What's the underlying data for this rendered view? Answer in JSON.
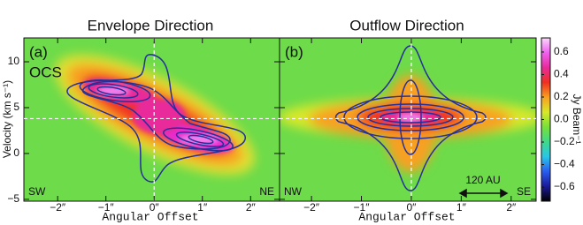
{
  "chart_data": [
    {
      "type": "heatmap",
      "title": "Envelope Direction",
      "panel_label": "(a)",
      "molecule": "OCS",
      "xlabel": "Angular Offset",
      "ylabel": "Velocity (km s⁻¹)",
      "left_label": "SW",
      "right_label": "NE",
      "xlim": [
        -2.7,
        2.6
      ],
      "ylim": [
        -5.2,
        12.6
      ],
      "xticks": [
        {
          "value": -2,
          "label": "−2″"
        },
        {
          "value": -1,
          "label": "−1″"
        },
        {
          "value": 0,
          "label": "0″"
        },
        {
          "value": 1,
          "label": "1″"
        },
        {
          "value": 2,
          "label": "2″"
        }
      ],
      "yticks": [
        {
          "value": -5,
          "label": "−5"
        },
        0,
        5,
        10
      ],
      "reference_lines": {
        "x": 0,
        "y": 3.8
      },
      "contour_color": "#25309a"
    },
    {
      "type": "heatmap",
      "title": "Outflow Direction",
      "panel_label": "(b)",
      "xlabel": "Angular Offset",
      "left_label": "NW",
      "right_label": "SE",
      "scale_bar": "120 AU",
      "xlim": [
        -2.64,
        2.5
      ],
      "ylim": [
        -5.2,
        12.6
      ],
      "xticks": [
        {
          "value": -2,
          "label": "−2″"
        },
        {
          "value": -1,
          "label": "−1″"
        },
        {
          "value": 0,
          "label": "0″"
        },
        {
          "value": 1,
          "label": "1″"
        },
        {
          "value": 2,
          "label": "2″"
        }
      ],
      "yticks": [
        -5,
        0,
        5,
        10
      ],
      "reference_lines": {
        "x": 0,
        "y": 3.8
      },
      "contour_color": "#25309a"
    }
  ],
  "colorbar": {
    "label": "Jy Beam⁻¹",
    "lim": [
      -0.725,
      0.725
    ],
    "ticks": [
      {
        "value": -0.6,
        "label": "−0.6"
      },
      {
        "value": -0.4,
        "label": "−0.4"
      },
      {
        "value": -0.2,
        "label": "−0.2"
      },
      {
        "value": 0,
        "label": "0.0"
      },
      0.2,
      0.4,
      0.6
    ],
    "colors": [
      "#000000",
      "#1a1a9a",
      "#2a5cf0",
      "#29c6e8",
      "#3fd98a",
      "#78e03a",
      "#d8e82a",
      "#f8a020",
      "#f03020",
      "#e82a9a",
      "#f060f0",
      "#fbd8fb"
    ]
  }
}
